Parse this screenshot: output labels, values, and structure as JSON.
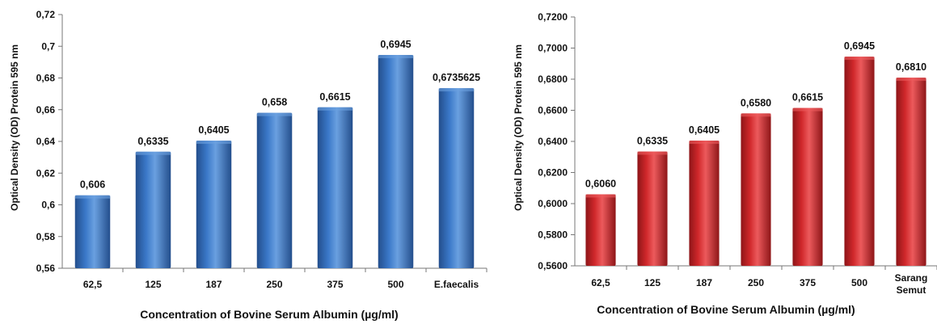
{
  "chart_data": [
    {
      "type": "bar",
      "title": "",
      "categories": [
        "62,5",
        "125",
        "187",
        "250",
        "375",
        "500",
        "E.faecalis"
      ],
      "values": [
        0.606,
        0.6335,
        0.6405,
        0.658,
        0.6615,
        0.6945,
        0.6735625
      ],
      "data_labels": [
        "0,606",
        "0,6335",
        "0,6405",
        "0,658",
        "0,6615",
        "0,6945",
        "0,6735625"
      ],
      "xlabel": "Concentration of Bovine Serum Albumin  (µg/ml)",
      "ylabel": "Optical Density (OD)  Protein 595 nm",
      "ylim": [
        0.56,
        0.72
      ],
      "yticks": [
        0.56,
        0.58,
        0.6,
        0.62,
        0.64,
        0.66,
        0.68,
        0.7,
        0.72
      ],
      "ytick_labels": [
        "0,56",
        "0,58",
        "0,6",
        "0,62",
        "0,64",
        "0,66",
        "0,68",
        "0,7",
        "0,72"
      ],
      "bar_color": "#3a78c8",
      "bar_dark": "#234e8c",
      "bar_light": "#6aa0e0",
      "grid": false,
      "legend": "none"
    },
    {
      "type": "bar",
      "title": "",
      "categories": [
        "62,5",
        "125",
        "187",
        "250",
        "375",
        "500",
        "Sarang Semut"
      ],
      "values": [
        0.606,
        0.6335,
        0.6405,
        0.658,
        0.6615,
        0.6945,
        0.681
      ],
      "data_labels": [
        "0,6060",
        "0,6335",
        "0,6405",
        "0,6580",
        "0,6615",
        "0,6945",
        "0,6810"
      ],
      "xlabel": "Concentration of Bovine Serum Albumin  (µg/ml)",
      "ylabel": "Optical Density (OD)  Protein 595 nm",
      "ylim": [
        0.56,
        0.72
      ],
      "yticks": [
        0.56,
        0.58,
        0.6,
        0.62,
        0.64,
        0.66,
        0.68,
        0.7,
        0.72
      ],
      "ytick_labels": [
        "0,5600",
        "0,5800",
        "0,6000",
        "0,6200",
        "0,6400",
        "0,6600",
        "0,6800",
        "0,7000",
        "0,7200"
      ],
      "bar_color": "#d0282b",
      "bar_dark": "#8e1518",
      "bar_light": "#ec5a5c",
      "grid": false,
      "legend": "none"
    }
  ]
}
